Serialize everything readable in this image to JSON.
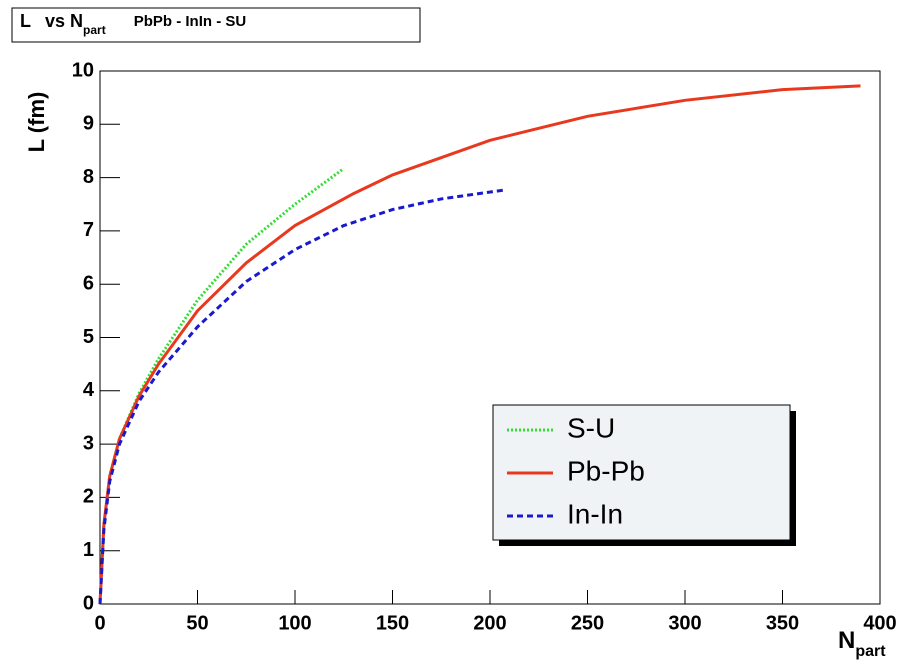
{
  "chart_data": {
    "type": "line",
    "title": [
      "L",
      "vs N",
      "part",
      "PbPb - InIn - SU"
    ],
    "x_label": [
      "N",
      "part"
    ],
    "y_label": "L  (fm)",
    "xlim": [
      0,
      400
    ],
    "xticks": [
      0,
      50,
      100,
      150,
      200,
      250,
      300,
      350,
      400
    ],
    "ylim": [
      0,
      10
    ],
    "yticks": [
      0,
      1,
      2,
      3,
      4,
      5,
      6,
      7,
      8,
      9,
      10
    ],
    "legend": "lower right",
    "series": [
      {
        "name": "S-U",
        "color": "#33dd33",
        "style": "dotted",
        "x": [
          0,
          2,
          5,
          10,
          20,
          30,
          50,
          75,
          100,
          125
        ],
        "values": [
          0,
          1.5,
          2.4,
          3.1,
          3.95,
          4.6,
          5.7,
          6.75,
          7.5,
          8.17
        ]
      },
      {
        "name": "Pb-Pb",
        "color": "#e8391f",
        "style": "solid",
        "x": [
          0,
          2,
          5,
          10,
          20,
          30,
          50,
          75,
          100,
          130,
          150,
          200,
          250,
          300,
          350,
          390
        ],
        "values": [
          0,
          1.5,
          2.4,
          3.1,
          3.9,
          4.5,
          5.5,
          6.4,
          7.1,
          7.7,
          8.05,
          8.7,
          9.15,
          9.45,
          9.65,
          9.72
        ]
      },
      {
        "name": "In-In",
        "color": "#1a1acc",
        "style": "dashed",
        "x": [
          0,
          2,
          5,
          10,
          20,
          30,
          50,
          75,
          100,
          125,
          150,
          175,
          208
        ],
        "values": [
          0,
          1.4,
          2.3,
          3.0,
          3.8,
          4.35,
          5.2,
          6.05,
          6.65,
          7.1,
          7.4,
          7.6,
          7.77
        ]
      }
    ]
  }
}
